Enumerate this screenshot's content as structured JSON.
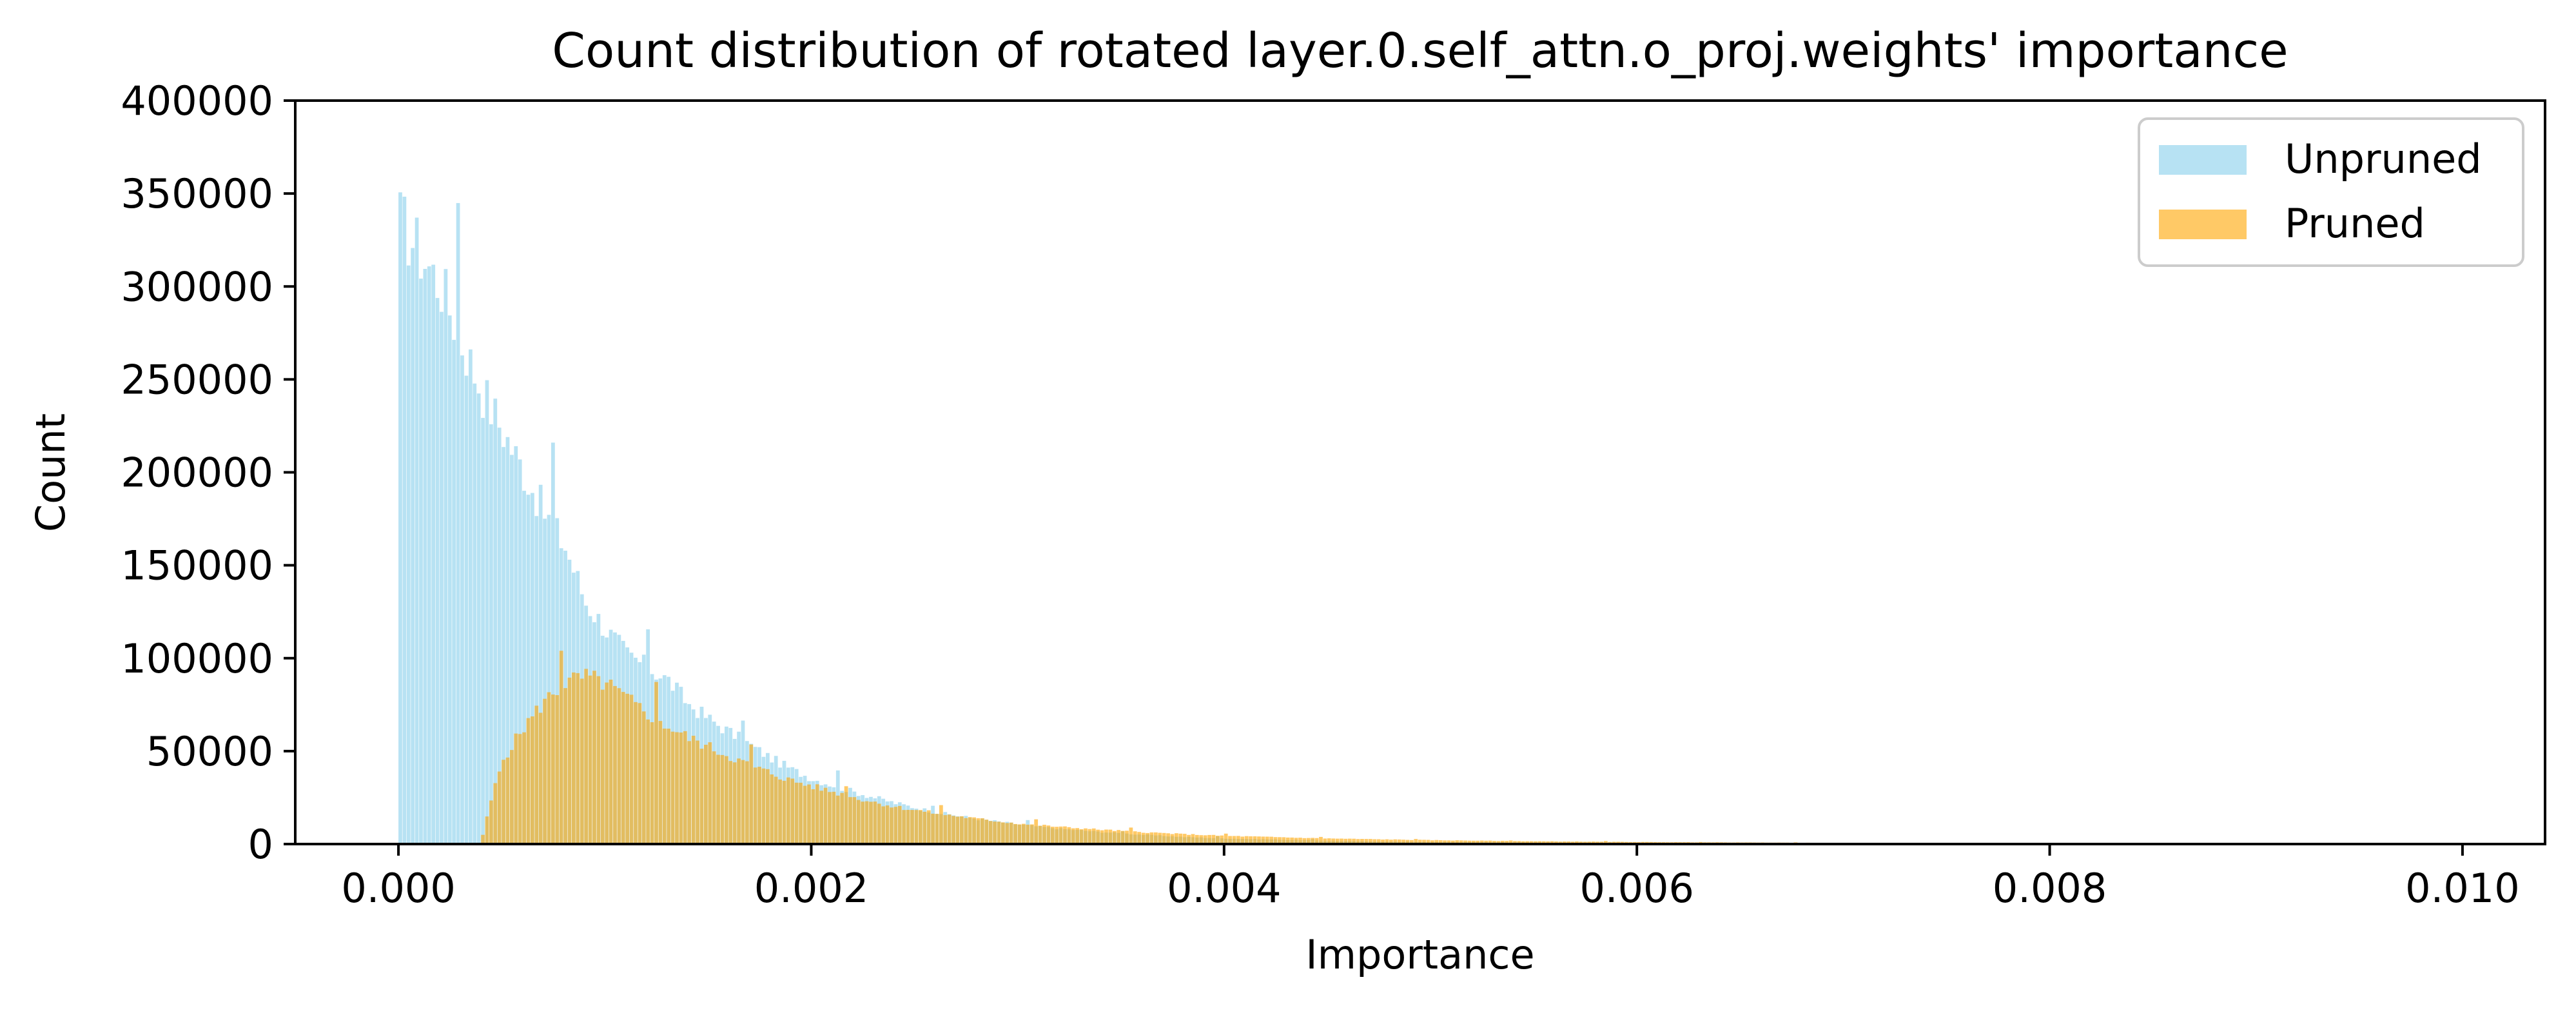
{
  "chart_data": {
    "type": "bar",
    "title": "Count distribution of rotated layer.0.self_attn.o_proj.weights' importance",
    "xlabel": "Importance",
    "ylabel": "Count",
    "xlim": [
      -0.0005,
      0.0104
    ],
    "ylim": [
      0,
      400000
    ],
    "xticks": [
      {
        "value": 0.0,
        "label": "0.000"
      },
      {
        "value": 0.002,
        "label": "0.002"
      },
      {
        "value": 0.004,
        "label": "0.004"
      },
      {
        "value": 0.006,
        "label": "0.006"
      },
      {
        "value": 0.008,
        "label": "0.008"
      },
      {
        "value": 0.01,
        "label": "0.010"
      }
    ],
    "yticks": [
      {
        "value": 0,
        "label": "0"
      },
      {
        "value": 50000,
        "label": "50000"
      },
      {
        "value": 100000,
        "label": "100000"
      },
      {
        "value": 150000,
        "label": "150000"
      },
      {
        "value": 200000,
        "label": "200000"
      },
      {
        "value": 250000,
        "label": "250000"
      },
      {
        "value": 300000,
        "label": "300000"
      },
      {
        "value": 350000,
        "label": "350000"
      },
      {
        "value": 400000,
        "label": "400000"
      }
    ],
    "grid": false,
    "legend": "top-right",
    "bin_width": 2e-05,
    "series": [
      {
        "name": "Unpruned",
        "color": "#87CEEB",
        "opacity": 0.6,
        "points": [
          [
            0.0,
            335000
          ],
          [
            0.0001,
            318000
          ],
          [
            0.0002,
            300000
          ],
          [
            0.0003,
            270000
          ],
          [
            0.0004,
            243000
          ],
          [
            0.0005,
            222000
          ],
          [
            0.0006,
            200000
          ],
          [
            0.0007,
            178000
          ],
          [
            0.0008,
            160000
          ],
          [
            0.0009,
            130000
          ],
          [
            0.001,
            115000
          ],
          [
            0.0011,
            102000
          ],
          [
            0.0012,
            95000
          ],
          [
            0.0013,
            88000
          ],
          [
            0.0014,
            75000
          ],
          [
            0.0015,
            67000
          ],
          [
            0.0016,
            60000
          ],
          [
            0.0017,
            53000
          ],
          [
            0.0018,
            46000
          ],
          [
            0.0019,
            40000
          ],
          [
            0.002,
            35000
          ],
          [
            0.0022,
            28000
          ],
          [
            0.0024,
            22000
          ],
          [
            0.0026,
            17000
          ],
          [
            0.0028,
            13500
          ],
          [
            0.003,
            10500
          ],
          [
            0.0032,
            8200
          ],
          [
            0.0034,
            6500
          ],
          [
            0.0036,
            5000
          ],
          [
            0.0038,
            3800
          ],
          [
            0.004,
            3000
          ],
          [
            0.0045,
            1800
          ],
          [
            0.005,
            1100
          ],
          [
            0.006,
            450
          ],
          [
            0.007,
            200
          ],
          [
            0.008,
            90
          ],
          [
            0.009,
            40
          ],
          [
            0.01,
            15
          ]
        ]
      },
      {
        "name": "Pruned",
        "color": "#FFA500",
        "opacity": 0.6,
        "points": [
          [
            0.0004,
            5000
          ],
          [
            0.00045,
            28000
          ],
          [
            0.0005,
            46000
          ],
          [
            0.0006,
            63000
          ],
          [
            0.0007,
            77000
          ],
          [
            0.0008,
            87000
          ],
          [
            0.0009,
            90000
          ],
          [
            0.001,
            86000
          ],
          [
            0.0011,
            78000
          ],
          [
            0.0012,
            70000
          ],
          [
            0.0013,
            63000
          ],
          [
            0.0014,
            57000
          ],
          [
            0.0015,
            52000
          ],
          [
            0.0016,
            47000
          ],
          [
            0.0017,
            42000
          ],
          [
            0.0018,
            38000
          ],
          [
            0.0019,
            34000
          ],
          [
            0.002,
            31000
          ],
          [
            0.0022,
            25000
          ],
          [
            0.0024,
            20000
          ],
          [
            0.0026,
            16500
          ],
          [
            0.0028,
            13500
          ],
          [
            0.003,
            11000
          ],
          [
            0.0032,
            9200
          ],
          [
            0.0034,
            7700
          ],
          [
            0.0036,
            6400
          ],
          [
            0.0038,
            5300
          ],
          [
            0.004,
            4400
          ],
          [
            0.0045,
            3000
          ],
          [
            0.005,
            2100
          ],
          [
            0.0055,
            1500
          ],
          [
            0.006,
            1100
          ],
          [
            0.007,
            600
          ],
          [
            0.008,
            330
          ],
          [
            0.009,
            180
          ],
          [
            0.01,
            100
          ]
        ]
      }
    ],
    "annotations": []
  }
}
